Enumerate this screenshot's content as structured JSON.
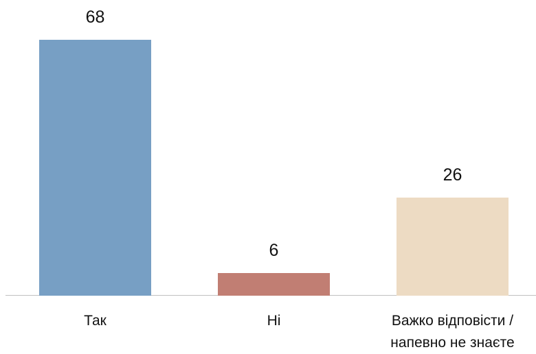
{
  "chart_data": {
    "type": "bar",
    "categories": [
      "Так",
      "Ні",
      "Важко відповісти / напевно не знаєте"
    ],
    "values": [
      68,
      6,
      26
    ],
    "colors": [
      "#779fc4",
      "#c17e73",
      "#eddbc3"
    ]
  }
}
